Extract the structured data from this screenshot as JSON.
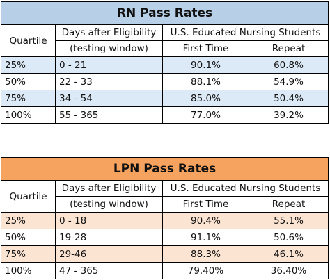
{
  "tables": [
    {
      "title": "RN Pass Rates",
      "header": {
        "quartile": "Quartile",
        "days": [
          "Days after Eligibility",
          "(testing window)"
        ],
        "group": "U.S. Educated Nursing Students",
        "first": "First Time",
        "repeat": "Repeat"
      },
      "rows": [
        [
          "25%",
          "0 - 21",
          "90.1%",
          "60.8%"
        ],
        [
          "50%",
          "22 - 33",
          "88.1%",
          "54.9%"
        ],
        [
          "75%",
          "34 - 54",
          "85.0%",
          "50.4%"
        ],
        [
          "100%",
          "55 - 365",
          "77.0%",
          "39.2%"
        ]
      ]
    },
    {
      "title": "LPN Pass Rates",
      "header": {
        "quartile": "Quartile",
        "days": [
          "Days after Eligibility",
          "(testing window)"
        ],
        "group": "U.S. Educated Nursing Students",
        "first": "First Time",
        "repeat": "Repeat"
      },
      "rows": [
        [
          "25%",
          "0 - 18",
          "90.4%",
          "55.1%"
        ],
        [
          "50%",
          "19-28",
          "91.1%",
          "50.6%"
        ],
        [
          "75%",
          "29-46",
          "88.3%",
          "46.1%"
        ],
        [
          "100%",
          "47 - 365",
          "79.40%",
          "36.40%"
        ]
      ]
    }
  ]
}
